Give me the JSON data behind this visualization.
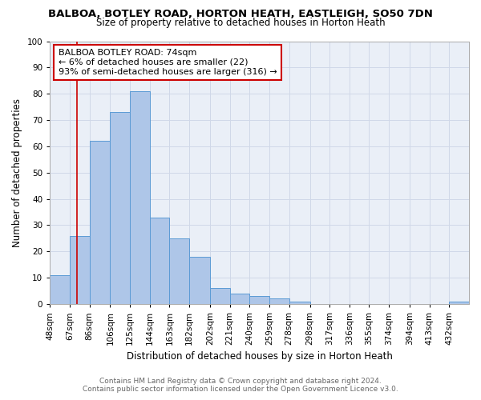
{
  "title1": "BALBOA, BOTLEY ROAD, HORTON HEATH, EASTLEIGH, SO50 7DN",
  "title2": "Size of property relative to detached houses in Horton Heath",
  "xlabel": "Distribution of detached houses by size in Horton Heath",
  "ylabel": "Number of detached properties",
  "footnote1": "Contains HM Land Registry data © Crown copyright and database right 2024.",
  "footnote2": "Contains public sector information licensed under the Open Government Licence v3.0.",
  "annotation_line1": "BALBOA BOTLEY ROAD: 74sqm",
  "annotation_line2": "← 6% of detached houses are smaller (22)",
  "annotation_line3": "93% of semi-detached houses are larger (316) →",
  "bar_values": [
    11,
    26,
    62,
    73,
    81,
    33,
    25,
    18,
    6,
    4,
    3,
    2,
    1,
    0,
    0,
    0,
    0,
    0,
    0,
    0,
    1
  ],
  "bin_edges": [
    48,
    67,
    86,
    106,
    125,
    144,
    163,
    182,
    202,
    221,
    240,
    259,
    278,
    298,
    317,
    336,
    355,
    374,
    394,
    413,
    432,
    451
  ],
  "bin_labels": [
    "48sqm",
    "67sqm",
    "86sqm",
    "106sqm",
    "125sqm",
    "144sqm",
    "163sqm",
    "182sqm",
    "202sqm",
    "221sqm",
    "240sqm",
    "259sqm",
    "278sqm",
    "298sqm",
    "317sqm",
    "336sqm",
    "355sqm",
    "374sqm",
    "394sqm",
    "413sqm",
    "432sqm"
  ],
  "bar_color": "#aec6e8",
  "bar_edge_color": "#5b9bd5",
  "grid_color": "#d0d8e8",
  "property_line_x": 74,
  "ylim": [
    0,
    100
  ],
  "yticks": [
    0,
    10,
    20,
    30,
    40,
    50,
    60,
    70,
    80,
    90,
    100
  ],
  "annotation_box_color": "#ffffff",
  "annotation_box_edge": "#cc0000",
  "red_line_color": "#cc0000",
  "background_color": "#eaeff7",
  "title1_fontsize": 9.5,
  "title2_fontsize": 8.5,
  "axis_label_fontsize": 8.5,
  "tick_fontsize": 7.5,
  "annotation_fontsize": 8,
  "footnote_fontsize": 6.5
}
